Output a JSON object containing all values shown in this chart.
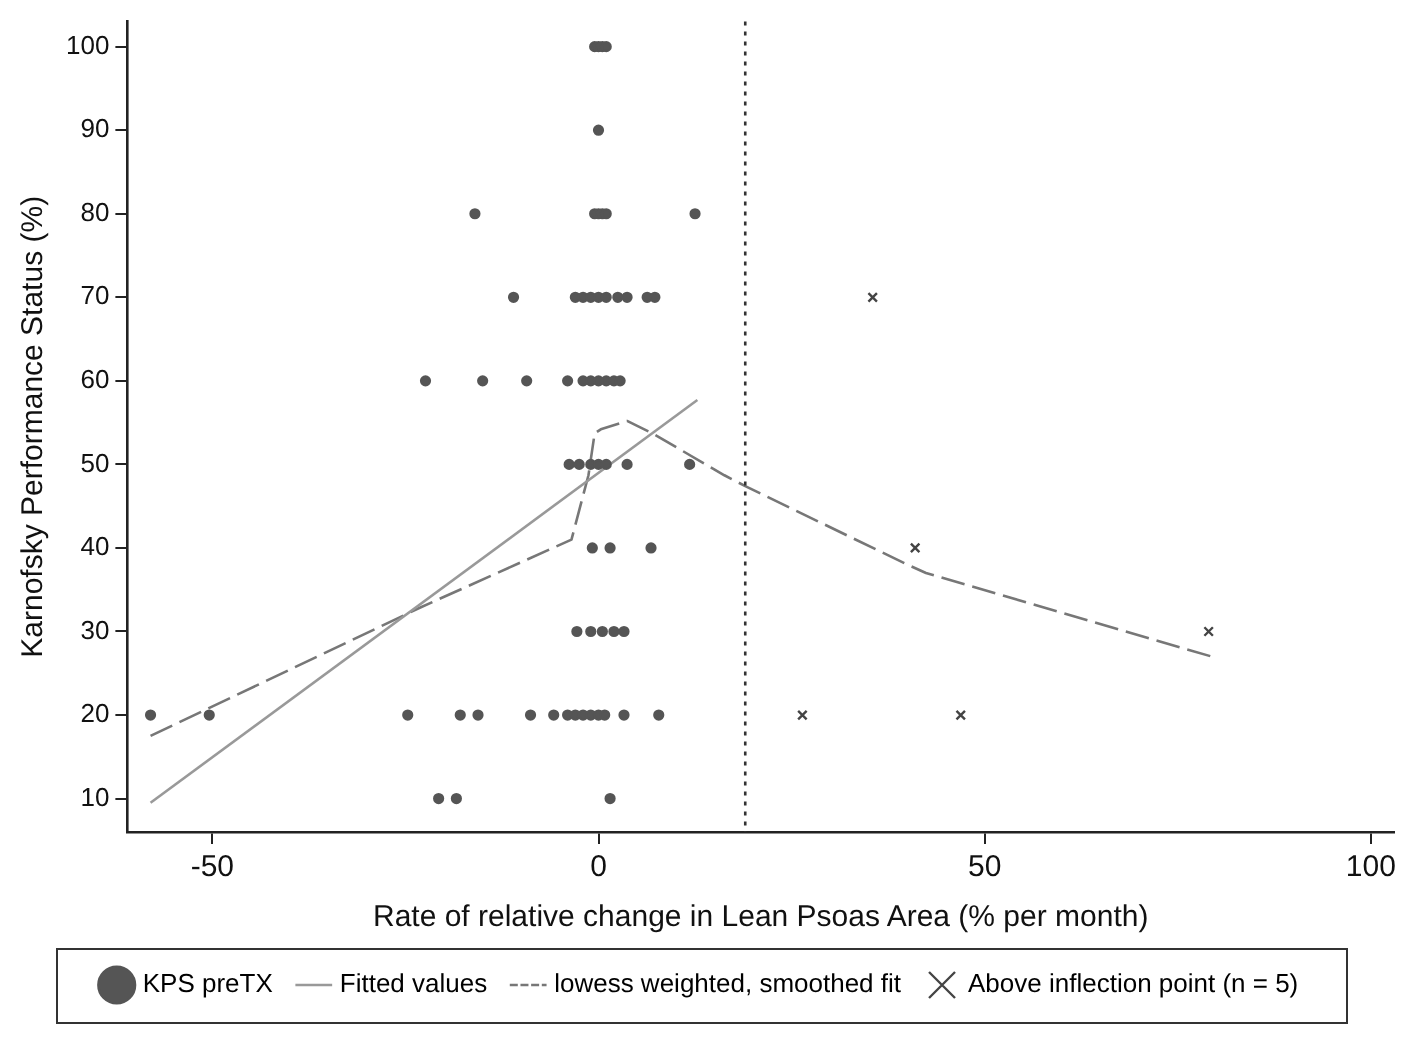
{
  "chart_data": {
    "type": "scatter",
    "xlabel": "Rate of relative change in Lean Psoas Area (% per month)",
    "ylabel": "Karnofsky Performance Status (%)",
    "xlim": [
      -61,
      103
    ],
    "xticks": [
      -50,
      0,
      50,
      100
    ],
    "ylim": [
      6,
      103
    ],
    "yticks": [
      10,
      20,
      30,
      40,
      50,
      60,
      70,
      80,
      90,
      100
    ],
    "grid": false,
    "legend": "bottom",
    "ref_lines": [
      {
        "axis": "x",
        "value": 19,
        "label": null,
        "color": "#333333",
        "line_style": "dotted"
      }
    ],
    "series": [
      {
        "name": "KPS preTX",
        "type": "scatter",
        "marker": "circle",
        "color": "#555555",
        "x": [
          -0.5,
          0,
          0.5,
          1,
          0,
          -16,
          -0.5,
          0,
          0.5,
          1,
          12.5,
          -11,
          -3,
          -2,
          -1,
          0,
          1,
          2.5,
          3.7,
          6.3,
          7.3,
          -22.4,
          -15,
          -9.3,
          -4,
          -2,
          -1,
          0,
          1,
          2,
          2.8,
          -3.8,
          -2.5,
          -1,
          0,
          1,
          3.7,
          11.8,
          -0.8,
          1.5,
          6.8,
          -2.8,
          -1,
          0.5,
          2,
          3.3,
          -58,
          -50.4,
          -24.7,
          -17.9,
          -15.6,
          -8.8,
          -5.8,
          -4,
          -3,
          -2,
          -1,
          0,
          0.8,
          3.3,
          7.8,
          -20.7,
          -18.4,
          1.5
        ],
        "values": [
          100,
          100,
          100,
          100,
          90,
          80,
          80,
          80,
          80,
          80,
          80,
          70,
          70,
          70,
          70,
          70,
          70,
          70,
          70,
          70,
          70,
          60,
          60,
          60,
          60,
          60,
          60,
          60,
          60,
          60,
          60,
          50,
          50,
          50,
          50,
          50,
          50,
          50,
          40,
          40,
          40,
          30,
          30,
          30,
          30,
          30,
          20,
          20,
          20,
          20,
          20,
          20,
          20,
          20,
          20,
          20,
          20,
          20,
          20,
          20,
          20,
          10,
          10,
          10
        ]
      },
      {
        "name": "Fitted values",
        "type": "line",
        "marker": "none",
        "line_style": "solid",
        "color": "#999999",
        "x": [
          -58,
          12.8
        ],
        "values": [
          9.5,
          57.7
        ]
      },
      {
        "name": "lowess weighted, smoothed fit",
        "type": "line",
        "marker": "none",
        "line_style": "dashed",
        "color": "#777777",
        "x": [
          -58,
          -23,
          -3.5,
          -1.3,
          -0.5,
          0.3,
          3.7,
          7,
          16.3,
          19,
          40,
          42.4,
          79.4
        ],
        "values": [
          17.5,
          32.9,
          41,
          48.7,
          53.7,
          54.2,
          55.2,
          53.7,
          48.7,
          47.4,
          38,
          37,
          27
        ]
      },
      {
        "name": "Above inflection point (n = 5)",
        "type": "scatter",
        "marker": "cross",
        "color": "#444444",
        "x": [
          35.5,
          41,
          26.4,
          46.9,
          79
        ],
        "values": [
          70,
          40,
          20,
          20,
          30
        ]
      }
    ]
  }
}
